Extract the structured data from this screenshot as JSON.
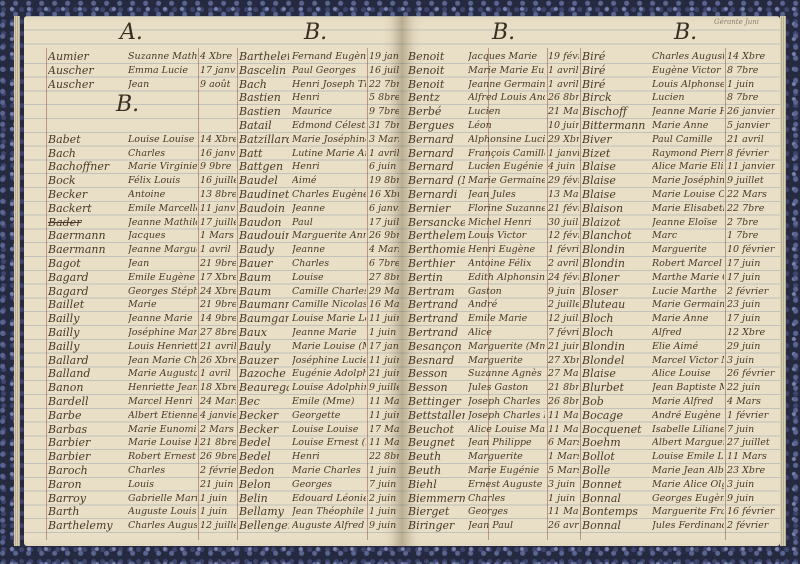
{
  "left_page": {
    "header_a": "A.",
    "header_b1": "B.",
    "header_b2": "B.",
    "col1": [
      [
        "Aumier",
        "Suzanne Mathilde",
        "4 Xbre"
      ],
      [
        "Auscher",
        "Emma Lucie",
        "17 janvier"
      ],
      [
        "Auscher",
        "Jean",
        "9 août"
      ],
      [
        "",
        "",
        ""
      ],
      [
        "",
        "",
        ""
      ],
      [
        "",
        "",
        ""
      ],
      [
        "Babet",
        "Louise Louise Louis",
        "14 Xbre"
      ],
      [
        "Bach",
        "Charles",
        "16 janvier"
      ],
      [
        "Bachoffner",
        "Marie Virginie",
        "9 9bre"
      ],
      [
        "Bock",
        "Félix Louis",
        "16 juillet"
      ],
      [
        "Becker",
        "Antoine",
        "13 8bre"
      ],
      [
        "Backert",
        "Emile Marcelle",
        "11 janvier"
      ],
      [
        "Bader",
        "Jeanne Mathilde",
        "17 juillet"
      ],
      [
        "Baermann",
        "Jacques",
        "1 Mars"
      ],
      [
        "Baermann",
        "Jeanne Marguerite",
        "1 avril"
      ],
      [
        "Bagot",
        "Jean",
        "21 9bre"
      ],
      [
        "Bagard",
        "Emile Eugène Camille",
        "17 Xbre"
      ],
      [
        "Bagard",
        "Georges Stéphane",
        "24 Xbre"
      ],
      [
        "Baillet",
        "Marie",
        "21 9bre"
      ],
      [
        "Bailly",
        "Jeanne Marie",
        "14 9bre"
      ],
      [
        "Bailly",
        "Joséphine Marguerite",
        "27 8bre"
      ],
      [
        "Bailly",
        "Louis Henriette",
        "21 avril"
      ],
      [
        "Ballard",
        "Jean Marie Charles",
        "26 Xbre"
      ],
      [
        "Balland",
        "Marie Augusta",
        "1 avril"
      ],
      [
        "Banon",
        "Henriette Jeanne",
        "18 Xbre"
      ],
      [
        "Bardell",
        "Marcel Henri",
        "24 Mars"
      ],
      [
        "Barbe",
        "Albert Etienne Emile",
        "4 janvier"
      ],
      [
        "Barbas",
        "Marie Eunomie",
        "2 Mars"
      ],
      [
        "Barbier",
        "Marie Louise Eugénie",
        "21 8bre"
      ],
      [
        "Barbier",
        "Robert Ernest",
        "26 9bre"
      ],
      [
        "Baroch",
        "Charles",
        "2 février"
      ],
      [
        "Baron",
        "Louis",
        "21 juin"
      ],
      [
        "Barroy",
        "Gabrielle Marie Antoinette",
        "1 juin"
      ],
      [
        "Barth",
        "Auguste Louis",
        "1 juin"
      ],
      [
        "Barthelemy",
        "Charles Auguste",
        "12 juillet"
      ]
    ],
    "col2": [
      [
        "Barthelet",
        "Fernand Eugène",
        "19 janvier"
      ],
      [
        "Bascelin",
        "Paul Georges",
        "16 juillet"
      ],
      [
        "Bach",
        "Henri Joseph Thomas",
        "22 7bre"
      ],
      [
        "Bastien",
        "Henri",
        "5 8bre"
      ],
      [
        "Bastien",
        "Maurice",
        "9 7bre"
      ],
      [
        "Batail",
        "Edmond Célestin",
        "31 7bre"
      ],
      [
        "Batzillard",
        "Marie Joséphine",
        "3 Mars"
      ],
      [
        "Batt",
        "Lutine Marie Anne",
        "1 avril"
      ],
      [
        "Battgen",
        "Henri",
        "6 juin"
      ],
      [
        "Baudel",
        "Aimé",
        "19 8bre"
      ],
      [
        "Baudinet",
        "Charles Eugène",
        "16 Xbre"
      ],
      [
        "Baudoin",
        "Jeanne",
        "6 janvier"
      ],
      [
        "Baudon",
        "Paul",
        "17 juillet"
      ],
      [
        "Baudouin",
        "Marguerite Anne",
        "26 9bre"
      ],
      [
        "Baudy",
        "Jeanne",
        "4 Mars"
      ],
      [
        "Bauer",
        "Charles",
        "6 7bre"
      ],
      [
        "Baum",
        "Louise",
        "27 8bre"
      ],
      [
        "Baum",
        "Camille Charles",
        "29 Mars"
      ],
      [
        "Baumann",
        "Camille Nicolas",
        "16 Mars"
      ],
      [
        "Baumgartner",
        "Louise Marie Louise",
        "11 juin"
      ],
      [
        "Baux",
        "Jeanne Marie",
        "1 juin"
      ],
      [
        "Bauly",
        "Marie Louise (Mme)",
        "17 janvier"
      ],
      [
        "Bauzer",
        "Joséphine Lucienne",
        "11 juin"
      ],
      [
        "Bazoche",
        "Eugénie Adolphe",
        "21 juin"
      ],
      [
        "Beauregard",
        "Louise Adolphine",
        "9 juillet"
      ],
      [
        "Bec",
        "Emile (Mme)",
        "11 Mars"
      ],
      [
        "Becker",
        "Georgette",
        "11 juin"
      ],
      [
        "Becker",
        "Louise Louise",
        "17 Mars"
      ],
      [
        "Bedel",
        "Louise Ernest (Mme)",
        "11 Mars"
      ],
      [
        "Bedel",
        "Henri",
        "22 8bre"
      ],
      [
        "Bedon",
        "Marie Charles",
        "1 juin"
      ],
      [
        "Belon",
        "Georges",
        "7 juin"
      ],
      [
        "Belin",
        "Edouard Léonie (Mme)",
        "2 juin"
      ],
      [
        "Bellamy",
        "Jean Théophile Louis",
        "1 juin"
      ],
      [
        "Bellenger",
        "Auguste Alfred",
        "9 juin"
      ]
    ]
  },
  "right_page": {
    "header_1": "B.",
    "header_2": "B.",
    "margin_note": "Gérante Juni",
    "col1": [
      [
        "Benoit",
        "Jacques Marie",
        "19 février"
      ],
      [
        "Benoit",
        "Marie Marie Eugénie",
        "1 avril"
      ],
      [
        "Benoit",
        "Jeanne Germaine",
        "1 avril"
      ],
      [
        "Bentz",
        "Alfred Louis André",
        "26 8bre"
      ],
      [
        "Berbé",
        "Lucien",
        "21 Mars"
      ],
      [
        "Bergues",
        "Léon",
        "10 juin"
      ],
      [
        "Bernard",
        "Alphonsine Lucie",
        "29 Xbre"
      ],
      [
        "Bernard",
        "François Camille",
        "1 janvier"
      ],
      [
        "Bernard",
        "Lucien Eugénie",
        "4 juin"
      ],
      [
        "Bernard (Mme)",
        "Marie Germaine",
        "29 février"
      ],
      [
        "Bernardi",
        "Jean Jules",
        "13 Mai"
      ],
      [
        "Bernier",
        "Florine Suzanne",
        "21 février"
      ],
      [
        "Bersancker",
        "Michel Henri",
        "30 juillet"
      ],
      [
        "Berthelemy",
        "Louis Victor",
        "12 février"
      ],
      [
        "Berthomieu",
        "Henri Eugène",
        "1 février"
      ],
      [
        "Berthier",
        "Antoine Félix",
        "2 avril"
      ],
      [
        "Bertin",
        "Edith Alphonsine",
        "24 février"
      ],
      [
        "Bertram",
        "Gaston",
        "9 juin"
      ],
      [
        "Bertrand",
        "André",
        "2 juillet"
      ],
      [
        "Bertrand",
        "Emile Marie",
        "12 juillet"
      ],
      [
        "Bertrand",
        "Alice",
        "7 février"
      ],
      [
        "Besançon",
        "Marguerite (Mme)",
        "21 juin"
      ],
      [
        "Besnard",
        "Marguerite",
        "27 Xbre"
      ],
      [
        "Besson",
        "Suzanne Agnès",
        "27 Mars"
      ],
      [
        "Besson",
        "Jules Gaston",
        "21 8bre"
      ],
      [
        "Bettinger",
        "Joseph Charles",
        "26 8bre"
      ],
      [
        "Bettstaller",
        "Joseph Charles Marie",
        "11 Mars"
      ],
      [
        "Beuchot",
        "Alice Louise Marguerite",
        "11 Mars"
      ],
      [
        "Beugnet",
        "Jean Philippe",
        "6 Mars"
      ],
      [
        "Beuth",
        "Marguerite",
        "1 Mars"
      ],
      [
        "Beuth",
        "Marie Eugénie",
        "5 Mars"
      ],
      [
        "Biehl",
        "Ernest Auguste",
        "3 juin"
      ],
      [
        "Biemmermann",
        "Charles",
        "1 juin"
      ],
      [
        "Bierget",
        "Georges",
        "11 Mars"
      ],
      [
        "Biringer",
        "Jean Paul",
        "26 avril"
      ]
    ],
    "col2": [
      [
        "Biré",
        "Charles Auguste",
        "14 Xbre"
      ],
      [
        "Biré",
        "Eugène Victor",
        "8 7bre"
      ],
      [
        "Biré",
        "Louis Alphonse",
        "1 juin"
      ],
      [
        "Birck",
        "Lucien",
        "8 7bre"
      ],
      [
        "Bischoff",
        "Jeanne Marie Héloïse",
        "26 janvier"
      ],
      [
        "Bittermann",
        "Marie Anne",
        "5 janvier"
      ],
      [
        "Biver",
        "Paul Camille",
        "21 avril"
      ],
      [
        "Bizet",
        "Raymond Pierre",
        "8 février"
      ],
      [
        "Blaise",
        "Alice Marie Elisabeth",
        "11 janvier"
      ],
      [
        "Blaise",
        "Marie Joséphine",
        "9 juillet"
      ],
      [
        "Blaise",
        "Marie Louise Charles",
        "22 Mars"
      ],
      [
        "Blaison",
        "Marie Elisabeth",
        "22 7bre"
      ],
      [
        "Blaizot",
        "Jeanne Eloïse",
        "2 7bre"
      ],
      [
        "Blanchot",
        "Marc",
        "1 7bre"
      ],
      [
        "Blondin",
        "Marguerite",
        "10 février"
      ],
      [
        "Blondin",
        "Robert Marcel Pierre",
        "17 juin"
      ],
      [
        "Bloner",
        "Marthe Marie Cathérine",
        "17 juin"
      ],
      [
        "Bloser",
        "Lucie Marthe",
        "2 février"
      ],
      [
        "Bluteau",
        "Marie Germaine",
        "23 juin"
      ],
      [
        "Bloch",
        "Marie Anne",
        "17 juin"
      ],
      [
        "Bloch",
        "Alfred",
        "12 Xbre"
      ],
      [
        "Blondin",
        "Elie Aimé",
        "29 juin"
      ],
      [
        "Blondel",
        "Marcel Victor Marie",
        "3 juin"
      ],
      [
        "Blaise",
        "Alice Louise",
        "26 février"
      ],
      [
        "Blurbet",
        "Jean Baptiste Marcel",
        "22 juin"
      ],
      [
        "Bob",
        "Marie Alfred",
        "4 Mars"
      ],
      [
        "Bocage",
        "André Eugène",
        "1 février"
      ],
      [
        "Bocquenet",
        "Isabelle Liliane",
        "7 juin"
      ],
      [
        "Boehm",
        "Albert Marguerite Eugène",
        "27 juillet"
      ],
      [
        "Bollot",
        "Louise Emile Louis",
        "11 Mars"
      ],
      [
        "Bolle",
        "Marie Jean Albert",
        "23 Xbre"
      ],
      [
        "Bonnet",
        "Marie Alice Olga",
        "3 juin"
      ],
      [
        "Bonnal",
        "Georges Eugène",
        "9 juin"
      ],
      [
        "Bontemps",
        "Marguerite Françoise",
        "16 février"
      ],
      [
        "Bonnal",
        "Jules Ferdinand Adrien",
        "2 février"
      ]
    ]
  }
}
